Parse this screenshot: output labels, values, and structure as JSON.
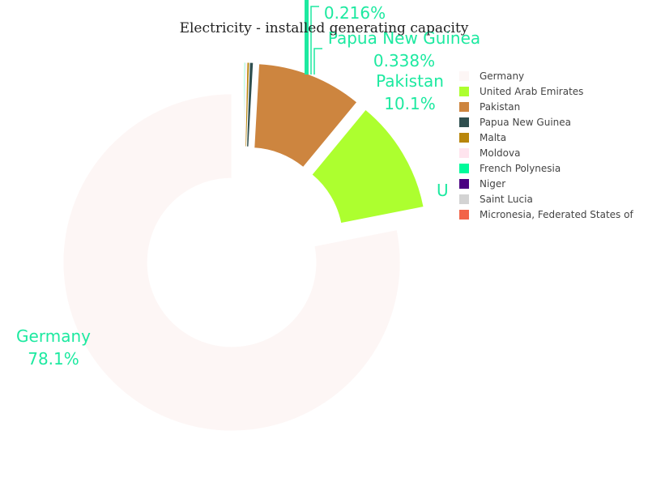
{
  "chart_data": {
    "type": "pie",
    "hole": true,
    "title": "Electricity - installed generating capacity",
    "label_color": "#1de9a0",
    "legend_position": "right",
    "slices": [
      {
        "label": "Germany",
        "percent": 78.1,
        "percent_text": "78.1%",
        "color": "#fdf6f5",
        "pulled": true
      },
      {
        "label": "United Arab Emirates",
        "percent": 10.9,
        "percent_text": "",
        "color": "#adff2f",
        "pulled": true
      },
      {
        "label": "Pakistan",
        "percent": 10.1,
        "percent_text": "10.1%",
        "color": "#cd853f",
        "pulled": true
      },
      {
        "label": "Papua New Guinea",
        "percent": 0.338,
        "percent_text": "0.338%",
        "color": "#2f4f4f",
        "pulled": true
      },
      {
        "label": "Malta",
        "percent": 0.216,
        "percent_text": "0.216%",
        "color": "#b8860b",
        "pulled": true
      },
      {
        "label": "Moldova",
        "percent": 0.15,
        "percent_text": "",
        "color": "#ffe4ee",
        "pulled": true
      },
      {
        "label": "French Polynesia",
        "percent": 0.1,
        "percent_text": "",
        "color": "#00fa9a",
        "pulled": true
      },
      {
        "label": "Niger",
        "percent": 0.05,
        "percent_text": "",
        "color": "#4b0082",
        "pulled": true
      },
      {
        "label": "Saint Lucia",
        "percent": 0.03,
        "percent_text": "",
        "color": "#d3d3d3",
        "pulled": true
      },
      {
        "label": "Micronesia, Federated States of",
        "percent": 0.01,
        "percent_text": "",
        "color": "#f26449",
        "pulled": true
      }
    ]
  }
}
